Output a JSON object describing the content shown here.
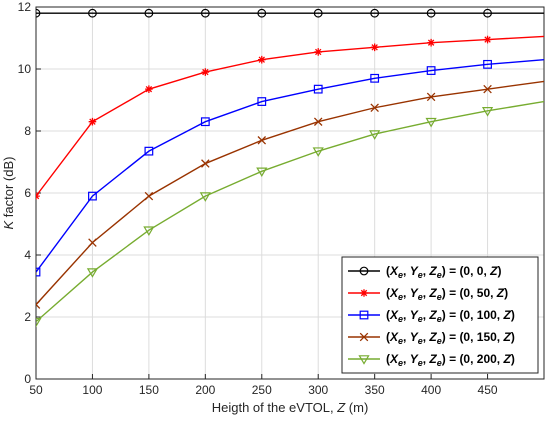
{
  "chart_data": {
    "type": "line",
    "xlabel_prefix": "Heigth of the eVTOL, ",
    "xlabel_var": "Z",
    "xlabel_suffix": " (m)",
    "ylabel_var": "K",
    "ylabel_suffix": " factor (dB)",
    "xlim": [
      50,
      500
    ],
    "ylim": [
      0,
      12
    ],
    "xticks": [
      50,
      100,
      150,
      200,
      250,
      300,
      350,
      400,
      450
    ],
    "yticks": [
      0,
      2,
      4,
      6,
      8,
      10,
      12
    ],
    "grid": true,
    "legend_position": "bottom-right",
    "series": [
      {
        "label_parts": [
          "(0, 0, ",
          "Z",
          ")"
        ],
        "color": "#000000",
        "marker": "circle",
        "x": [
          50,
          100,
          150,
          200,
          250,
          300,
          350,
          400,
          450,
          500
        ],
        "y": [
          11.8,
          11.8,
          11.8,
          11.8,
          11.8,
          11.8,
          11.8,
          11.8,
          11.8,
          11.8
        ]
      },
      {
        "label_parts": [
          "(0, 50, ",
          "Z",
          ")"
        ],
        "color": "#ff0000",
        "marker": "asterisk",
        "x": [
          50,
          100,
          150,
          200,
          250,
          300,
          350,
          400,
          450,
          500
        ],
        "y": [
          5.9,
          8.3,
          9.35,
          9.9,
          10.3,
          10.55,
          10.7,
          10.85,
          10.95,
          11.05
        ]
      },
      {
        "label_parts": [
          "(0, 100, ",
          "Z",
          ")"
        ],
        "color": "#0000ff",
        "marker": "square",
        "x": [
          50,
          100,
          150,
          200,
          250,
          300,
          350,
          400,
          450,
          500
        ],
        "y": [
          3.45,
          5.9,
          7.35,
          8.3,
          8.95,
          9.35,
          9.7,
          9.95,
          10.15,
          10.3
        ]
      },
      {
        "label_parts": [
          "(0, 150, ",
          "Z",
          ")"
        ],
        "color": "#993300",
        "marker": "x",
        "x": [
          50,
          100,
          150,
          200,
          250,
          300,
          350,
          400,
          450,
          500
        ],
        "y": [
          2.4,
          4.4,
          5.9,
          6.95,
          7.7,
          8.3,
          8.75,
          9.1,
          9.35,
          9.6
        ]
      },
      {
        "label_parts": [
          "(0, 200, ",
          "Z",
          ")"
        ],
        "color": "#77ac30",
        "marker": "triangle-down",
        "x": [
          50,
          100,
          150,
          200,
          250,
          300,
          350,
          400,
          450,
          500
        ],
        "y": [
          1.85,
          3.45,
          4.8,
          5.9,
          6.7,
          7.35,
          7.9,
          8.3,
          8.65,
          8.95
        ]
      }
    ]
  }
}
